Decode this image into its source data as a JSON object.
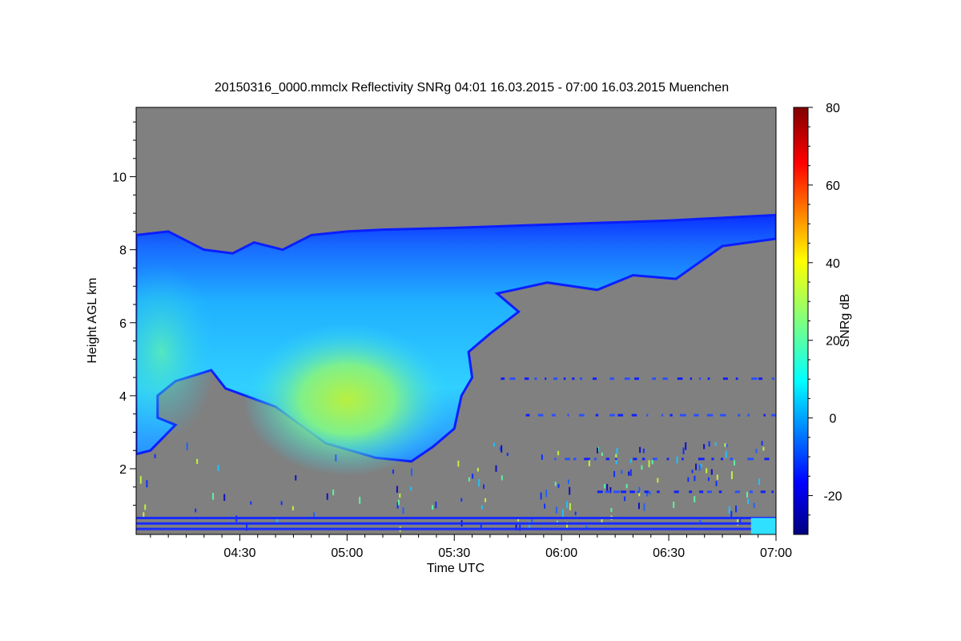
{
  "chart_data": {
    "type": "heatmap",
    "title": "20150316_0000.mmclx Reflectivity SNRg   04:01 16.03.2015 - 07:00 16.03.2015 Muenchen",
    "xlabel": "Time UTC",
    "ylabel": "Height AGL km",
    "colorbar_label": "SNRg dB",
    "x_range_minutes": [
      241,
      420
    ],
    "y_range_km": [
      0.2,
      11.9
    ],
    "x_ticks": [
      {
        "minute": 270,
        "label": "04:30"
      },
      {
        "minute": 300,
        "label": "05:00"
      },
      {
        "minute": 330,
        "label": "05:30"
      },
      {
        "minute": 360,
        "label": "06:00"
      },
      {
        "minute": 390,
        "label": "06:30"
      },
      {
        "minute": 420,
        "label": "07:00"
      }
    ],
    "y_ticks": [
      {
        "value": 2,
        "label": "2"
      },
      {
        "value": 4,
        "label": "4"
      },
      {
        "value": 6,
        "label": "6"
      },
      {
        "value": 8,
        "label": "8"
      },
      {
        "value": 10,
        "label": "10"
      }
    ],
    "colorbar_range_db": [
      -30,
      80
    ],
    "colorbar_ticks": [
      {
        "value": -20,
        "label": "-20"
      },
      {
        "value": 0,
        "label": "0"
      },
      {
        "value": 20,
        "label": "20"
      },
      {
        "value": 40,
        "label": "40"
      },
      {
        "value": 60,
        "label": "60"
      },
      {
        "value": 80,
        "label": "80"
      }
    ],
    "colormap": "jet",
    "background_color": "#808080",
    "cloud_top_km": [
      {
        "minute": 241,
        "km": 8.4
      },
      {
        "minute": 250,
        "km": 8.5
      },
      {
        "minute": 260,
        "km": 8.0
      },
      {
        "minute": 268,
        "km": 7.9
      },
      {
        "minute": 274,
        "km": 8.2
      },
      {
        "minute": 282,
        "km": 8.0
      },
      {
        "minute": 290,
        "km": 8.4
      },
      {
        "minute": 300,
        "km": 8.5
      },
      {
        "minute": 310,
        "km": 8.55
      },
      {
        "minute": 330,
        "km": 8.6
      },
      {
        "minute": 360,
        "km": 8.7
      },
      {
        "minute": 390,
        "km": 8.8
      },
      {
        "minute": 420,
        "km": 8.95
      }
    ],
    "cloud_base_km": [
      {
        "minute": 241,
        "km": 2.4
      },
      {
        "minute": 245,
        "km": 2.5
      },
      {
        "minute": 252,
        "km": 3.2
      },
      {
        "minute": 247,
        "km": 3.4
      },
      {
        "minute": 247,
        "km": 4.0
      },
      {
        "minute": 252,
        "km": 4.4
      },
      {
        "minute": 262,
        "km": 4.7
      },
      {
        "minute": 266,
        "km": 4.2
      },
      {
        "minute": 280,
        "km": 3.7
      },
      {
        "minute": 294,
        "km": 2.7
      },
      {
        "minute": 308,
        "km": 2.3
      },
      {
        "minute": 318,
        "km": 2.2
      },
      {
        "minute": 324,
        "km": 2.6
      },
      {
        "minute": 330,
        "km": 3.1
      },
      {
        "minute": 332,
        "km": 4.0
      },
      {
        "minute": 335,
        "km": 4.5
      },
      {
        "minute": 334,
        "km": 5.2
      },
      {
        "minute": 340,
        "km": 5.7
      },
      {
        "minute": 348,
        "km": 6.3
      },
      {
        "minute": 342,
        "km": 6.8
      },
      {
        "minute": 356,
        "km": 7.1
      },
      {
        "minute": 370,
        "km": 6.9
      },
      {
        "minute": 380,
        "km": 7.3
      },
      {
        "minute": 392,
        "km": 7.2
      },
      {
        "minute": 405,
        "km": 8.1
      },
      {
        "minute": 420,
        "km": 8.3
      }
    ],
    "high_snr_core": {
      "center_minute": 300,
      "center_km": 3.9,
      "peak_db": 35
    },
    "near_surface_bands_km": [
      0.35,
      0.5,
      0.65
    ]
  }
}
